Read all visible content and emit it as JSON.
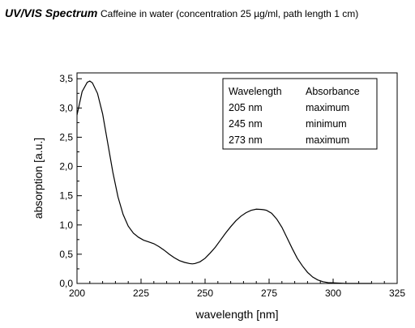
{
  "header": {
    "title": "UV/VIS Spectrum",
    "subtitle": "Caffeine in water (concentration 25 µg/ml, path length 1 cm)"
  },
  "chart_data": {
    "type": "line",
    "xlabel": "wavelength [nm]",
    "ylabel": "absorption [a.u.]",
    "xlim": [
      200,
      325
    ],
    "ylim": [
      0,
      3.6
    ],
    "x_ticks": [
      200,
      225,
      250,
      275,
      300,
      325
    ],
    "x_tick_labels": [
      "200",
      "225",
      "250",
      "275",
      "300",
      "325"
    ],
    "y_ticks": [
      0,
      0.5,
      1.0,
      1.5,
      2.0,
      2.5,
      3.0,
      3.5
    ],
    "y_tick_labels": [
      "0,0",
      "0,5",
      "1,0",
      "1,5",
      "2,0",
      "2,5",
      "3,0",
      "3,5"
    ],
    "grid": false,
    "series": [
      {
        "x": [
          200,
          202,
          204,
          205,
          206,
          208,
          210,
          212,
          214,
          216,
          218,
          220,
          222,
          224,
          226,
          228,
          230,
          232,
          234,
          236,
          238,
          240,
          242,
          244,
          245,
          246,
          248,
          250,
          252,
          254,
          256,
          258,
          260,
          262,
          264,
          266,
          268,
          270,
          272,
          273,
          274,
          276,
          278,
          280,
          282,
          284,
          286,
          288,
          290,
          292,
          294,
          296,
          298,
          300,
          305,
          310,
          315
        ],
        "y": [
          2.88,
          3.28,
          3.44,
          3.46,
          3.43,
          3.25,
          2.9,
          2.4,
          1.9,
          1.48,
          1.18,
          0.98,
          0.86,
          0.79,
          0.74,
          0.71,
          0.68,
          0.63,
          0.57,
          0.5,
          0.44,
          0.39,
          0.36,
          0.34,
          0.335,
          0.34,
          0.37,
          0.43,
          0.52,
          0.62,
          0.74,
          0.86,
          0.97,
          1.07,
          1.15,
          1.21,
          1.25,
          1.27,
          1.265,
          1.26,
          1.25,
          1.2,
          1.1,
          0.96,
          0.78,
          0.6,
          0.43,
          0.3,
          0.19,
          0.11,
          0.06,
          0.03,
          0.015,
          0.01,
          0.0,
          0.0,
          0.0
        ]
      }
    ],
    "table": {
      "headers": [
        "Wavelength",
        "Absorbance"
      ],
      "rows": [
        [
          "205 nm",
          "maximum"
        ],
        [
          "245 nm",
          "minimum"
        ],
        [
          "273 nm",
          "maximum"
        ]
      ],
      "placement": "top-right"
    }
  }
}
